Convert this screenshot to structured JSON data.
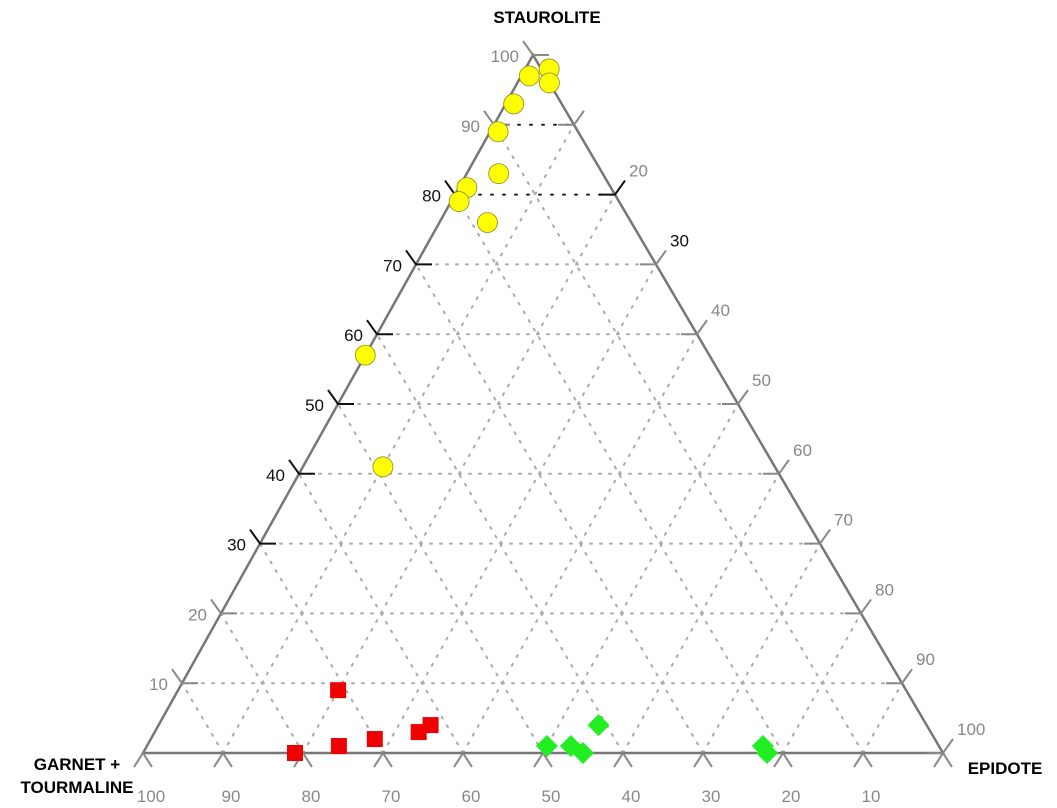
{
  "chart_data": {
    "type": "scatter",
    "subtype": "ternary",
    "title": "",
    "axes": {
      "top": "STAUROLITE",
      "left": [
        "GARNET +",
        "TOURMALINE"
      ],
      "right": "EPIDOTE"
    },
    "ticks": {
      "left": [
        "10",
        "20",
        "30",
        "40",
        "50",
        "60",
        "70",
        "80",
        "90",
        "100"
      ],
      "right": [
        "20",
        "30",
        "40",
        "50",
        "60",
        "70",
        "80",
        "90",
        "100"
      ],
      "bottom": [
        "100",
        "90",
        "80",
        "70",
        "60",
        "50",
        "40",
        "30",
        "20",
        "10"
      ]
    },
    "grid": true,
    "colors": {
      "staurolite_group": "#ffff00",
      "garnet_group": "#ee0000",
      "epidote_group": "#22ee22",
      "frame": "#777777",
      "grid": "#aaaaaa"
    },
    "series": [
      {
        "marker": "circle",
        "color": "#ffff00",
        "points": [
          {
            "staurolite": 98,
            "epidote": 3
          },
          {
            "staurolite": 97,
            "epidote": 1
          },
          {
            "staurolite": 96,
            "epidote": 4
          },
          {
            "staurolite": 93,
            "epidote": 1
          },
          {
            "staurolite": 89,
            "epidote": 1
          },
          {
            "staurolite": 83,
            "epidote": 4
          },
          {
            "staurolite": 81,
            "epidote": 1
          },
          {
            "staurolite": 79,
            "epidote": 1
          },
          {
            "staurolite": 76,
            "epidote": 6
          },
          {
            "staurolite": 57,
            "epidote": 0
          },
          {
            "staurolite": 41,
            "epidote": 10
          }
        ]
      },
      {
        "marker": "square",
        "color": "#ee0000",
        "points": [
          {
            "staurolite": 9,
            "epidote": 20
          },
          {
            "staurolite": 4,
            "epidote": 34
          },
          {
            "staurolite": 3,
            "epidote": 33
          },
          {
            "staurolite": 2,
            "epidote": 28
          },
          {
            "staurolite": 1,
            "epidote": 24
          },
          {
            "staurolite": 0,
            "epidote": 19
          }
        ]
      },
      {
        "marker": "diamond",
        "color": "#22ee22",
        "points": [
          {
            "staurolite": 4,
            "epidote": 55
          },
          {
            "staurolite": 1,
            "epidote": 53
          },
          {
            "staurolite": 1,
            "epidote": 50
          },
          {
            "staurolite": 0,
            "epidote": 55
          },
          {
            "staurolite": 1,
            "epidote": 77
          },
          {
            "staurolite": 0,
            "epidote": 78
          }
        ]
      }
    ]
  }
}
